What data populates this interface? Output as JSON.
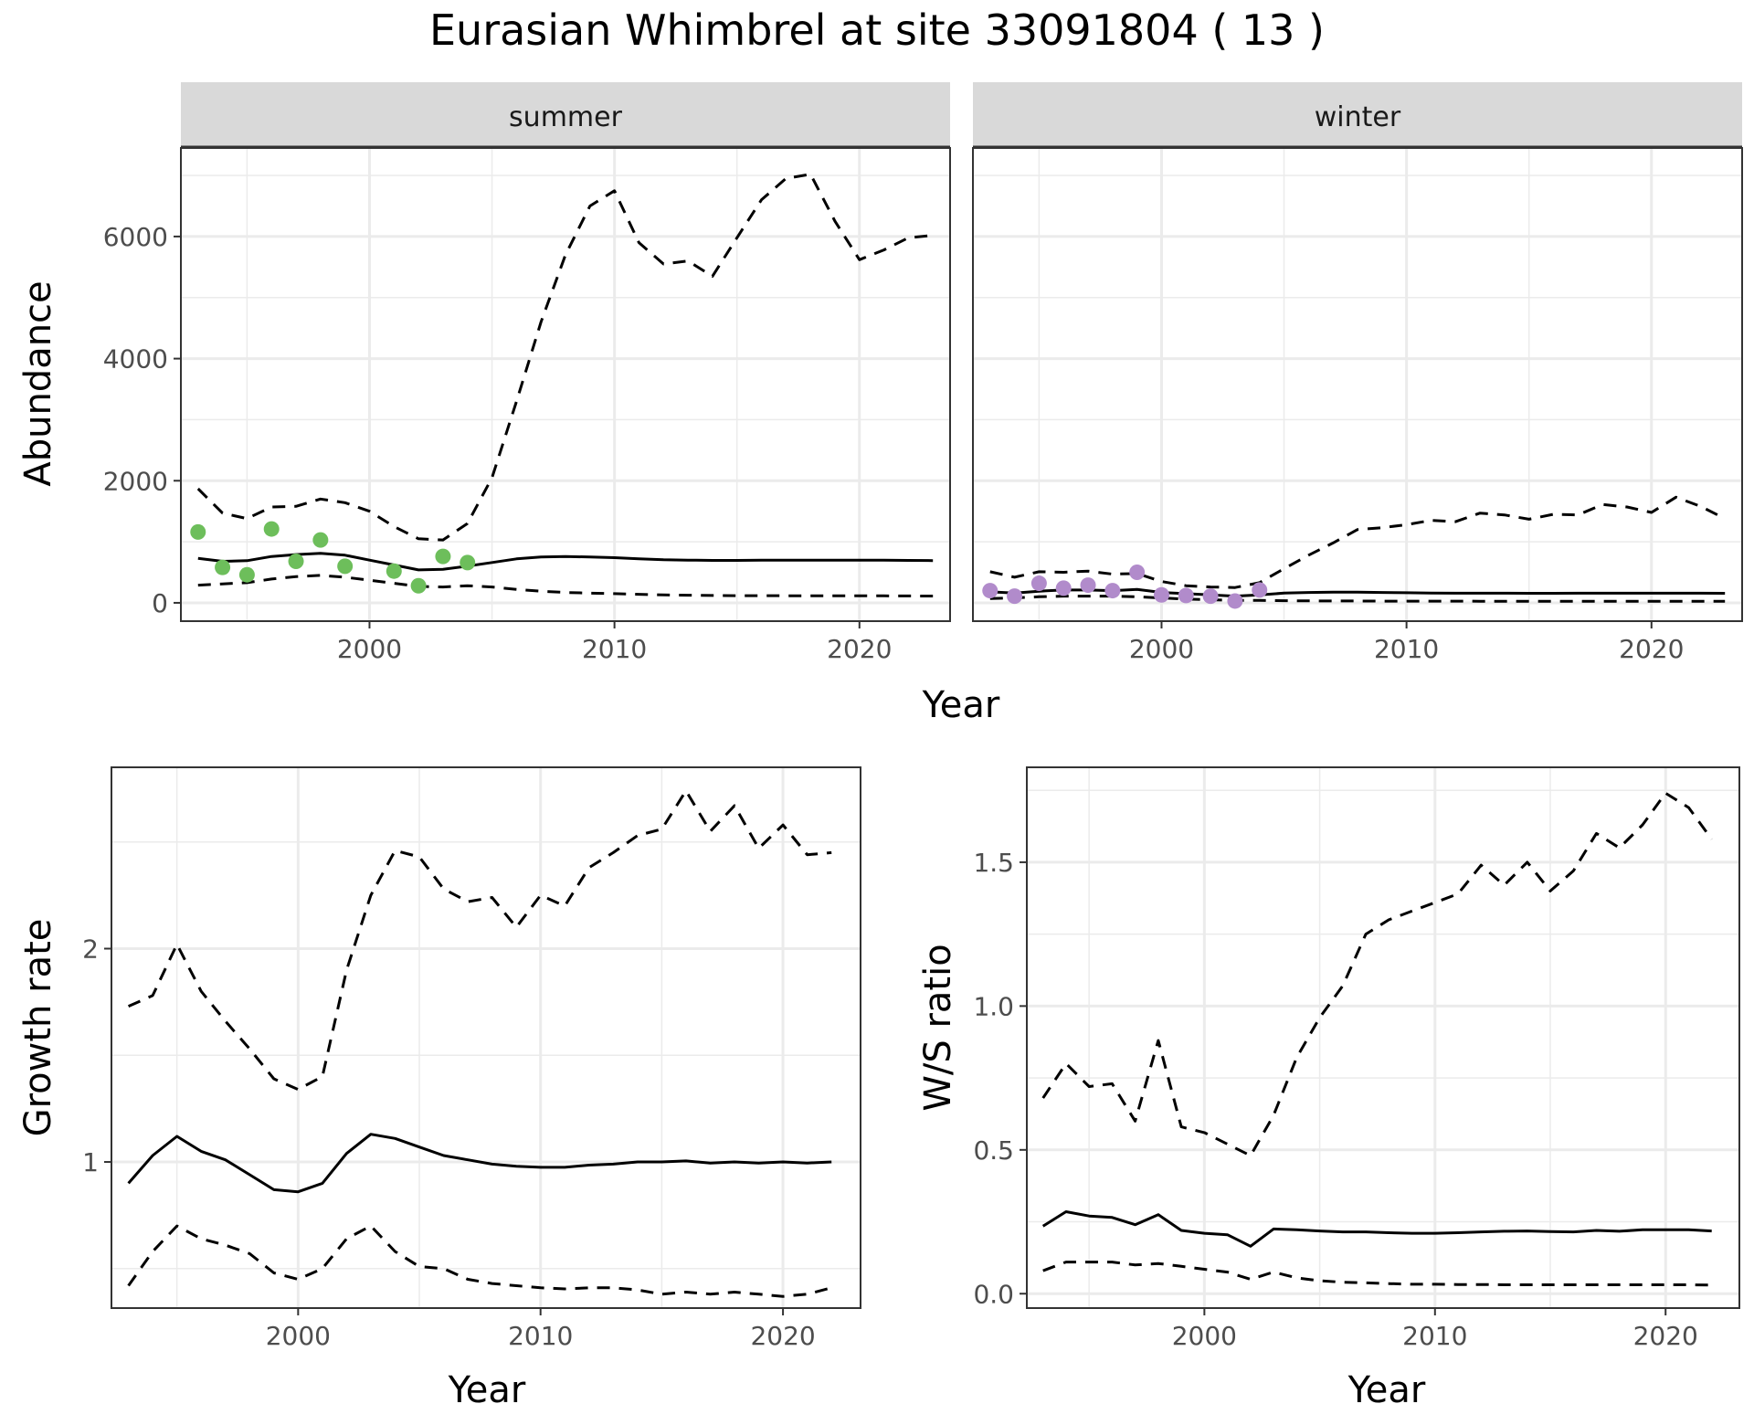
{
  "title": "Eurasian Whimbrel at site 33091804 ( 13 )",
  "colors": {
    "summer_points": "#6dbe5b",
    "winter_points": "#b18bcb",
    "line": "#000000",
    "grid": "#ebebeb",
    "strip_fill": "#d9d9d9"
  },
  "chart_data": [
    {
      "type": "line",
      "panel": "summer",
      "xlabel": "Year",
      "ylabel": "Abundance",
      "xlim": [
        1992.3,
        2023.7
      ],
      "ylim": [
        -300,
        7450
      ],
      "xticks": [
        2000,
        2010,
        2020
      ],
      "yticks": [
        0,
        2000,
        4000,
        6000
      ],
      "grid": true,
      "points": {
        "x": [
          1993,
          1994,
          1995,
          1996,
          1997,
          1998,
          1999,
          2001,
          2002,
          2003,
          2004
        ],
        "y": [
          1160,
          580,
          460,
          1210,
          680,
          1030,
          600,
          520,
          280,
          760,
          660
        ]
      },
      "series": [
        {
          "style": "solid",
          "x": [
            1993,
            1994,
            1995,
            1996,
            1997,
            1998,
            1999,
            2000,
            2001,
            2002,
            2003,
            2004,
            2005,
            2006,
            2007,
            2008,
            2009,
            2010,
            2011,
            2012,
            2013,
            2014,
            2015,
            2016,
            2017,
            2018,
            2019,
            2020,
            2021,
            2022,
            2023
          ],
          "y": [
            730,
            680,
            690,
            760,
            790,
            810,
            780,
            700,
            620,
            540,
            550,
            600,
            660,
            720,
            750,
            760,
            750,
            740,
            720,
            705,
            700,
            695,
            695,
            698,
            700,
            700,
            700,
            698,
            698,
            695,
            692
          ]
        },
        {
          "style": "dashed",
          "x": [
            1993,
            1994,
            1995,
            1996,
            1997,
            1998,
            1999,
            2000,
            2001,
            2002,
            2003,
            2004,
            2005,
            2006,
            2007,
            2008,
            2009,
            2010,
            2011,
            2012,
            2013,
            2014,
            2015,
            2016,
            2017,
            2018,
            2019,
            2020,
            2021,
            2022,
            2023
          ],
          "y": [
            1870,
            1470,
            1380,
            1570,
            1580,
            1700,
            1640,
            1500,
            1250,
            1050,
            1030,
            1300,
            2050,
            3300,
            4600,
            5700,
            6500,
            6750,
            5900,
            5550,
            5600,
            5350,
            5980,
            6600,
            6950,
            7020,
            6250,
            5620,
            5780,
            5980,
            6020
          ]
        },
        {
          "style": "dashed",
          "x": [
            1993,
            1994,
            1995,
            1996,
            1997,
            1998,
            1999,
            2000,
            2001,
            2002,
            2003,
            2004,
            2005,
            2006,
            2007,
            2008,
            2009,
            2010,
            2011,
            2012,
            2013,
            2014,
            2015,
            2016,
            2017,
            2018,
            2019,
            2020,
            2021,
            2022,
            2023
          ],
          "y": [
            290,
            310,
            330,
            390,
            430,
            450,
            420,
            370,
            320,
            270,
            260,
            280,
            260,
            220,
            190,
            170,
            160,
            150,
            140,
            130,
            125,
            120,
            118,
            117,
            116,
            116,
            115,
            114,
            114,
            113,
            112
          ]
        }
      ]
    },
    {
      "type": "line",
      "panel": "winter",
      "xlabel": "Year",
      "ylabel": "Abundance",
      "xlim": [
        1992.3,
        2023.7
      ],
      "ylim": [
        -300,
        7450
      ],
      "xticks": [
        2000,
        2010,
        2020
      ],
      "yticks": [
        0,
        2000,
        4000,
        6000
      ],
      "grid": true,
      "points": {
        "x": [
          1993,
          1994,
          1995,
          1996,
          1997,
          1998,
          1999,
          2000,
          2001,
          2002,
          2003,
          2004
        ],
        "y": [
          200,
          110,
          320,
          240,
          290,
          200,
          500,
          130,
          120,
          110,
          30,
          210
        ]
      },
      "series": [
        {
          "style": "solid",
          "x": [
            1993,
            1994,
            1995,
            1996,
            1997,
            1998,
            1999,
            2000,
            2001,
            2002,
            2003,
            2004,
            2005,
            2006,
            2007,
            2008,
            2009,
            2010,
            2011,
            2012,
            2013,
            2014,
            2015,
            2016,
            2017,
            2018,
            2019,
            2020,
            2021,
            2022,
            2023
          ],
          "y": [
            180,
            160,
            190,
            210,
            210,
            200,
            220,
            170,
            150,
            130,
            110,
            130,
            160,
            170,
            175,
            175,
            170,
            165,
            160,
            158,
            158,
            158,
            157,
            157,
            158,
            158,
            158,
            158,
            158,
            158,
            157
          ]
        },
        {
          "style": "dashed",
          "x": [
            1993,
            1994,
            1995,
            1996,
            1997,
            1998,
            1999,
            2000,
            2001,
            2002,
            2003,
            2004,
            2005,
            2006,
            2007,
            2008,
            2009,
            2010,
            2011,
            2012,
            2013,
            2014,
            2015,
            2016,
            2017,
            2018,
            2019,
            2020,
            2021,
            2022,
            2023
          ],
          "y": [
            510,
            420,
            510,
            500,
            520,
            470,
            480,
            350,
            280,
            260,
            250,
            330,
            560,
            780,
            980,
            1200,
            1230,
            1280,
            1350,
            1330,
            1470,
            1440,
            1370,
            1450,
            1440,
            1610,
            1570,
            1480,
            1730,
            1580,
            1380
          ]
        },
        {
          "style": "dashed",
          "x": [
            1993,
            1994,
            1995,
            1996,
            1997,
            1998,
            1999,
            2000,
            2001,
            2002,
            2003,
            2004,
            2005,
            2006,
            2007,
            2008,
            2009,
            2010,
            2011,
            2012,
            2013,
            2014,
            2015,
            2016,
            2017,
            2018,
            2019,
            2020,
            2021,
            2022,
            2023
          ],
          "y": [
            70,
            80,
            100,
            110,
            110,
            110,
            100,
            80,
            60,
            50,
            40,
            40,
            35,
            32,
            30,
            30,
            28,
            28,
            27,
            27,
            26,
            26,
            26,
            25,
            25,
            25,
            25,
            25,
            25,
            25,
            25
          ]
        }
      ]
    },
    {
      "type": "line",
      "panel": "growth",
      "xlabel": "Year",
      "ylabel": "Growth rate",
      "xlim": [
        1992.3,
        2023.2
      ],
      "ylim": [
        0.315,
        2.85
      ],
      "xticks": [
        2000,
        2010,
        2020
      ],
      "yticks": [
        1,
        2
      ],
      "grid": true,
      "series": [
        {
          "style": "solid",
          "x": [
            1993,
            1994,
            1995,
            1996,
            1997,
            1998,
            1999,
            2000,
            2001,
            2002,
            2003,
            2004,
            2005,
            2006,
            2007,
            2008,
            2009,
            2010,
            2011,
            2012,
            2013,
            2014,
            2015,
            2016,
            2017,
            2018,
            2019,
            2020,
            2021,
            2022
          ],
          "y": [
            0.9,
            1.03,
            1.12,
            1.05,
            1.01,
            0.94,
            0.87,
            0.86,
            0.9,
            1.04,
            1.13,
            1.11,
            1.07,
            1.03,
            1.01,
            0.99,
            0.98,
            0.975,
            0.975,
            0.985,
            0.99,
            1.0,
            1.0,
            1.005,
            0.995,
            1.0,
            0.995,
            1.0,
            0.995,
            1.0
          ]
        },
        {
          "style": "dashed",
          "x": [
            1993,
            1994,
            1995,
            1996,
            1997,
            1998,
            1999,
            2000,
            2001,
            2002,
            2003,
            2004,
            2005,
            2006,
            2007,
            2008,
            2009,
            2010,
            2011,
            2012,
            2013,
            2014,
            2015,
            2016,
            2017,
            2018,
            2019,
            2020,
            2021,
            2022
          ],
          "y": [
            1.73,
            1.78,
            2.02,
            1.8,
            1.66,
            1.53,
            1.39,
            1.34,
            1.4,
            1.9,
            2.25,
            2.46,
            2.43,
            2.28,
            2.22,
            2.24,
            2.1,
            2.25,
            2.2,
            2.38,
            2.45,
            2.53,
            2.56,
            2.74,
            2.55,
            2.67,
            2.47,
            2.58,
            2.44,
            2.45
          ]
        },
        {
          "style": "dashed",
          "x": [
            1993,
            1994,
            1995,
            1996,
            1997,
            1998,
            1999,
            2000,
            2001,
            2002,
            2003,
            2004,
            2005,
            2006,
            2007,
            2008,
            2009,
            2010,
            2011,
            2012,
            2013,
            2014,
            2015,
            2016,
            2017,
            2018,
            2019,
            2020,
            2021,
            2022
          ],
          "y": [
            0.42,
            0.58,
            0.7,
            0.64,
            0.61,
            0.57,
            0.48,
            0.45,
            0.5,
            0.64,
            0.7,
            0.58,
            0.51,
            0.5,
            0.45,
            0.43,
            0.42,
            0.41,
            0.405,
            0.41,
            0.41,
            0.4,
            0.38,
            0.39,
            0.38,
            0.39,
            0.38,
            0.37,
            0.38,
            0.41
          ]
        }
      ]
    },
    {
      "type": "line",
      "panel": "ratio",
      "xlabel": "Year",
      "ylabel": "W/S ratio",
      "xlim": [
        1992.3,
        2023.2
      ],
      "ylim": [
        -0.05,
        1.83
      ],
      "xticks": [
        2000,
        2010,
        2020
      ],
      "yticks": [
        0.0,
        0.5,
        1.0,
        1.5
      ],
      "ytick_labels": [
        "0.0",
        "0.5",
        "1.0",
        "1.5"
      ],
      "grid": true,
      "series": [
        {
          "style": "solid",
          "x": [
            1993,
            1994,
            1995,
            1996,
            1997,
            1998,
            1999,
            2000,
            2001,
            2002,
            2003,
            2004,
            2005,
            2006,
            2007,
            2008,
            2009,
            2010,
            2011,
            2012,
            2013,
            2014,
            2015,
            2016,
            2017,
            2018,
            2019,
            2020,
            2021,
            2022
          ],
          "y": [
            0.235,
            0.285,
            0.27,
            0.265,
            0.24,
            0.275,
            0.22,
            0.21,
            0.205,
            0.165,
            0.225,
            0.222,
            0.218,
            0.215,
            0.215,
            0.212,
            0.21,
            0.21,
            0.212,
            0.215,
            0.217,
            0.218,
            0.216,
            0.215,
            0.22,
            0.217,
            0.222,
            0.222,
            0.222,
            0.218
          ]
        },
        {
          "style": "dashed",
          "x": [
            1993,
            1994,
            1995,
            1996,
            1997,
            1998,
            1999,
            2000,
            2001,
            2002,
            2003,
            2004,
            2005,
            2006,
            2007,
            2008,
            2009,
            2010,
            2011,
            2012,
            2013,
            2014,
            2015,
            2016,
            2017,
            2018,
            2019,
            2020,
            2021,
            2022
          ],
          "y": [
            0.68,
            0.8,
            0.72,
            0.73,
            0.6,
            0.88,
            0.58,
            0.56,
            0.52,
            0.48,
            0.62,
            0.82,
            0.96,
            1.07,
            1.25,
            1.3,
            1.33,
            1.36,
            1.39,
            1.49,
            1.42,
            1.5,
            1.4,
            1.47,
            1.6,
            1.55,
            1.63,
            1.74,
            1.69,
            1.58
          ]
        },
        {
          "style": "dashed",
          "x": [
            1993,
            1994,
            1995,
            1996,
            1997,
            1998,
            1999,
            2000,
            2001,
            2002,
            2003,
            2004,
            2005,
            2006,
            2007,
            2008,
            2009,
            2010,
            2011,
            2012,
            2013,
            2014,
            2015,
            2016,
            2017,
            2018,
            2019,
            2020,
            2021,
            2022
          ],
          "y": [
            0.08,
            0.11,
            0.11,
            0.11,
            0.1,
            0.105,
            0.095,
            0.085,
            0.075,
            0.05,
            0.075,
            0.055,
            0.045,
            0.04,
            0.038,
            0.035,
            0.033,
            0.033,
            0.032,
            0.032,
            0.031,
            0.031,
            0.031,
            0.031,
            0.031,
            0.031,
            0.031,
            0.031,
            0.031,
            0.03
          ]
        }
      ]
    }
  ],
  "labels": {
    "strip_summer": "summer",
    "strip_winter": "winter",
    "top_xlabel": "Year",
    "top_ylabel": "Abundance",
    "growth_xlabel": "Year",
    "growth_ylabel": "Growth rate",
    "ratio_xlabel": "Year",
    "ratio_ylabel": "W/S ratio"
  }
}
